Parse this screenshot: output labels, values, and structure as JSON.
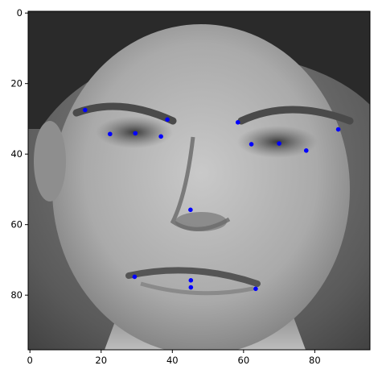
{
  "chart_data": {
    "type": "scatter",
    "description_style": "image with keypoint overlay (matplotlib imshow)",
    "background": "grayscale face photograph, 96x96 pixels",
    "xlim": [
      -0.5,
      95.5
    ],
    "ylim": [
      95.5,
      -0.5
    ],
    "y_inverted": true,
    "grid": false,
    "legend": "none",
    "title": "",
    "xlabel": "",
    "ylabel": "",
    "x_ticks": [
      0,
      20,
      40,
      60,
      80
    ],
    "y_ticks": [
      0,
      20,
      40,
      60,
      80
    ],
    "marker_color": "#0000ff",
    "series": [
      {
        "points": [
          {
            "x": 15.5,
            "y": 27.5
          },
          {
            "x": 22.5,
            "y": 34.3
          },
          {
            "x": 29.6,
            "y": 34.1
          },
          {
            "x": 36.8,
            "y": 35.0
          },
          {
            "x": 38.6,
            "y": 30.2
          },
          {
            "x": 58.4,
            "y": 31.0
          },
          {
            "x": 62.2,
            "y": 37.2
          },
          {
            "x": 70.0,
            "y": 37.0
          },
          {
            "x": 77.6,
            "y": 39.0
          },
          {
            "x": 86.6,
            "y": 33.0
          },
          {
            "x": 45.1,
            "y": 55.8
          },
          {
            "x": 29.4,
            "y": 74.8
          },
          {
            "x": 45.2,
            "y": 75.8
          },
          {
            "x": 45.2,
            "y": 77.8
          },
          {
            "x": 63.4,
            "y": 78.2
          }
        ]
      }
    ]
  }
}
